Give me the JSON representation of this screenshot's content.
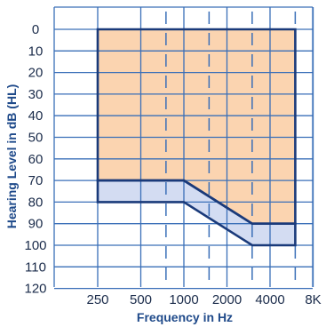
{
  "chart_data": {
    "type": "area",
    "xlabel": "Frequency in Hz",
    "ylabel": "Hearing Level in dB (HL)",
    "x_ticks": [
      "250",
      "500",
      "1000",
      "2000",
      "4000",
      "8K"
    ],
    "x_intermediate": [
      "750",
      "1500",
      "3000",
      "6000"
    ],
    "y_ticks": [
      "0",
      "10",
      "20",
      "30",
      "40",
      "50",
      "60",
      "70",
      "80",
      "90",
      "100",
      "110",
      "120"
    ],
    "ylim": [
      0,
      120
    ],
    "y_inverted": true,
    "grid": true,
    "regions": [
      {
        "fill": "#fbd4b0",
        "points": [
          [
            250,
            0
          ],
          [
            6000,
            0
          ],
          [
            6000,
            90
          ],
          [
            3000,
            90
          ],
          [
            1000,
            70
          ],
          [
            250,
            70
          ]
        ]
      },
      {
        "fill": "#d3dcf2",
        "points": [
          [
            250,
            70
          ],
          [
            1000,
            70
          ],
          [
            3000,
            90
          ],
          [
            6000,
            90
          ],
          [
            6000,
            100
          ],
          [
            3000,
            100
          ],
          [
            1000,
            80
          ],
          [
            250,
            80
          ]
        ]
      }
    ],
    "colors": {
      "grid": "#3a6fb8",
      "outline": "#1a3a7a",
      "text": "#1a2b4a",
      "title": "#1f4a8a"
    }
  }
}
